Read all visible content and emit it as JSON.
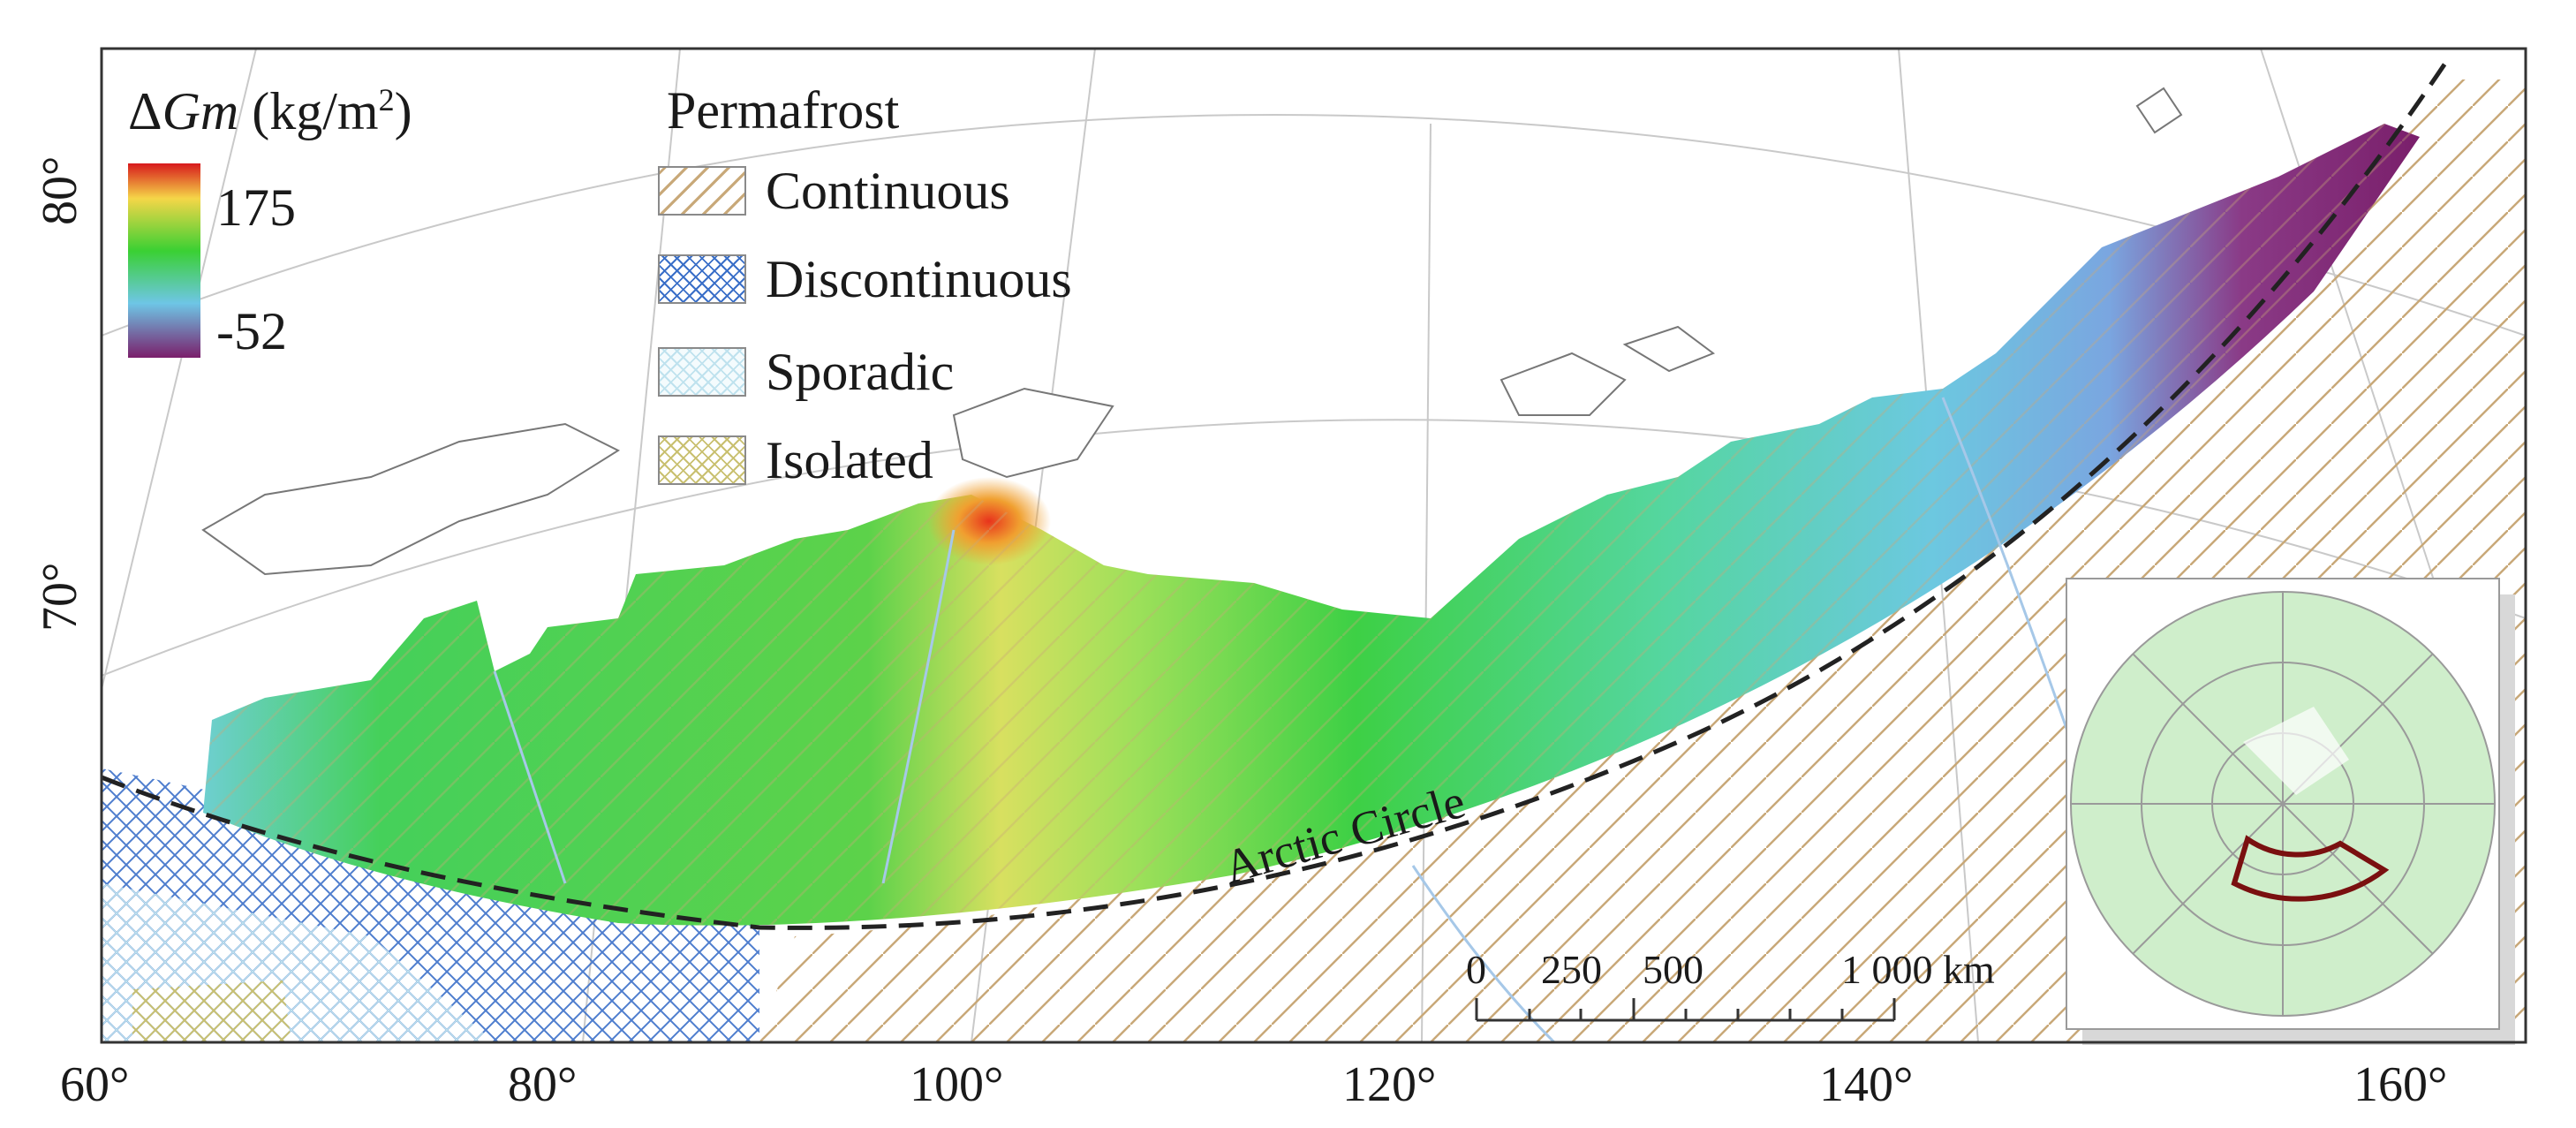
{
  "map": {
    "lat_ticks": [
      "80°",
      "70°"
    ],
    "lon_ticks": [
      "60°",
      "80°",
      "100°",
      "120°",
      "140°",
      "160°"
    ],
    "arctic_circle_label": "Arctic Circle"
  },
  "colorbar": {
    "title": "ΔGm (kg/m²)",
    "title_symbol": "Δ",
    "title_var": "Gm",
    "title_unit": "(kg/m",
    "title_sup": "2",
    "title_close": ")",
    "max_label": "175",
    "min_label": "-52",
    "colors": [
      "#d7191c",
      "#f5d648",
      "#3ad033",
      "#6ec6e6",
      "#7a1f6b"
    ]
  },
  "permafrost_legend": {
    "title": "Permafrost",
    "items": [
      {
        "label": "Continuous",
        "pattern": "diagonal-hatch",
        "color": "#c8a878"
      },
      {
        "label": "Discontinuous",
        "pattern": "cross-hatch",
        "color": "#3a6fc8"
      },
      {
        "label": "Sporadic",
        "pattern": "light-cross-hatch",
        "color": "#cfe9f3"
      },
      {
        "label": "Isolated",
        "pattern": "cross-hatch",
        "color": "#c9c070"
      }
    ]
  },
  "scale_bar": {
    "labels": [
      "0",
      "250",
      "500",
      "1 000 km"
    ]
  }
}
